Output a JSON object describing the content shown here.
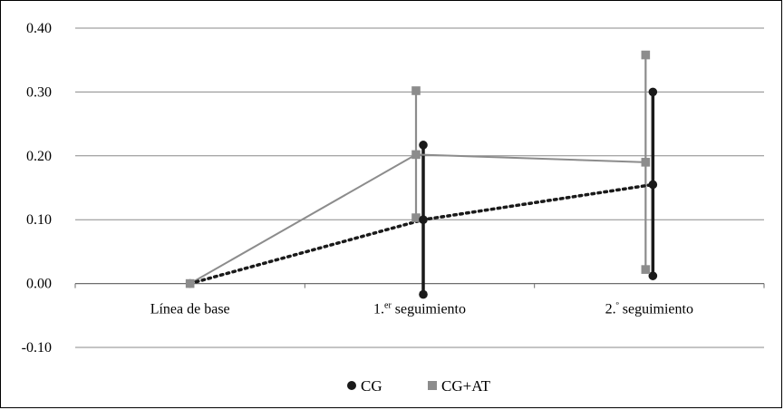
{
  "chart_data": {
    "type": "line",
    "categories": [
      "Línea de base",
      "1.er seguimiento",
      "2.º seguimiento"
    ],
    "ylim": [
      -0.1,
      0.4
    ],
    "yticks": [
      "-0.10",
      "0.00",
      "0.10",
      "0.20",
      "0.30",
      "0.40"
    ],
    "grid": true,
    "legend_position": "bottom",
    "series": [
      {
        "name": "CG",
        "marker": "circle",
        "line_style": "dotted",
        "color": "#1a1a1a",
        "values": [
          0.0,
          0.1,
          0.155
        ],
        "error_low": [
          null,
          -0.017,
          0.012
        ],
        "error_high": [
          null,
          0.217,
          0.3
        ]
      },
      {
        "name": "CG+AT",
        "marker": "square",
        "line_style": "solid",
        "color": "#8c8c8c",
        "values": [
          0.0,
          0.202,
          0.19
        ],
        "error_low": [
          null,
          0.103,
          0.022
        ],
        "error_high": [
          null,
          0.302,
          0.358
        ]
      }
    ]
  }
}
